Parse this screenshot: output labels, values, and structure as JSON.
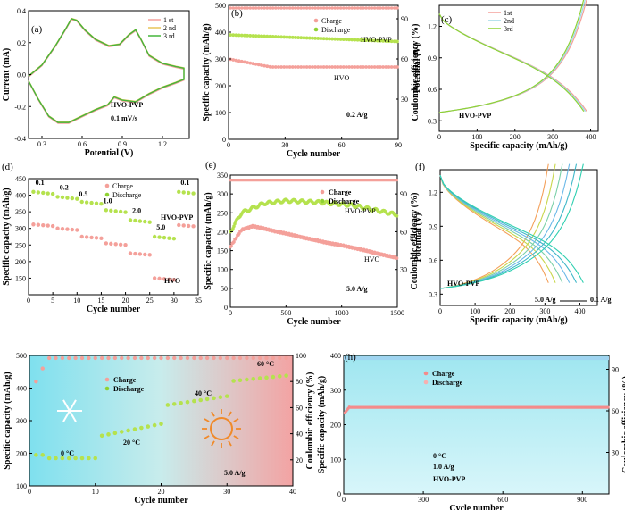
{
  "chart_data": [
    {
      "panel": "a",
      "type": "line",
      "title": "",
      "xlabel": "Potential (V)",
      "ylabel": "Current (mA)",
      "xlim": [
        0.2,
        1.4
      ],
      "ylim": [
        -0.4,
        0.4
      ],
      "xticks": [
        "0.3",
        "0.6",
        "0.9",
        "1.2"
      ],
      "yticks": [
        "-0.4",
        "-0.2",
        "0.0",
        "0.2",
        "0.4"
      ],
      "legend": [
        "1 st",
        "2 nd",
        "3 rd"
      ],
      "colors": [
        "#f4a09a",
        "#e8c458",
        "#44b63a"
      ],
      "annotations": [
        "HVO-PVP",
        "0.1 mV/s"
      ],
      "anodic": [
        [
          0.2,
          -0.01
        ],
        [
          0.3,
          0.06
        ],
        [
          0.4,
          0.18
        ],
        [
          0.48,
          0.29
        ],
        [
          0.52,
          0.35
        ],
        [
          0.56,
          0.34
        ],
        [
          0.62,
          0.28
        ],
        [
          0.7,
          0.22
        ],
        [
          0.8,
          0.18
        ],
        [
          0.88,
          0.19
        ],
        [
          0.95,
          0.25
        ],
        [
          1.0,
          0.28
        ],
        [
          1.04,
          0.22
        ],
        [
          1.1,
          0.12
        ],
        [
          1.2,
          0.07
        ],
        [
          1.3,
          0.05
        ],
        [
          1.36,
          0.04
        ],
        [
          1.36,
          -0.03
        ]
      ],
      "cathodic": [
        [
          1.36,
          -0.03
        ],
        [
          1.3,
          -0.05
        ],
        [
          1.2,
          -0.08
        ],
        [
          1.1,
          -0.12
        ],
        [
          1.0,
          -0.17
        ],
        [
          0.9,
          -0.16
        ],
        [
          0.84,
          -0.14
        ],
        [
          0.79,
          -0.19
        ],
        [
          0.7,
          -0.22
        ],
        [
          0.6,
          -0.26
        ],
        [
          0.5,
          -0.3
        ],
        [
          0.42,
          -0.3
        ],
        [
          0.35,
          -0.26
        ],
        [
          0.27,
          -0.15
        ],
        [
          0.2,
          -0.04
        ]
      ]
    },
    {
      "panel": "b",
      "type": "scatter",
      "xlabel": "Cycle number",
      "ylabel": "Specific capacity (mAh/g)",
      "y2label": "Coulombic efficiency (%)",
      "xlim": [
        0,
        90
      ],
      "ylim": [
        0,
        500
      ],
      "y2lim": [
        0,
        100
      ],
      "xticks": [
        "0",
        "30",
        "60",
        "90"
      ],
      "yticks": [
        "0",
        "100",
        "200",
        "300",
        "400",
        "500"
      ],
      "y2ticks": [
        "30",
        "60",
        "90"
      ],
      "legend": [
        "Charge",
        "Discharge"
      ],
      "annotations": [
        "HVO-PVP",
        "HVO",
        "0.2 A/g"
      ],
      "series": [
        {
          "name": "HVO-PVP discharge",
          "start": 390,
          "end": 365
        },
        {
          "name": "HVO",
          "start": 300,
          "end": 270
        },
        {
          "name": "Coulombic efficiency",
          "value": 98
        }
      ]
    },
    {
      "panel": "c",
      "type": "line",
      "xlabel": "Specific capacity (mAh/g)",
      "ylabel": "Potential (V)",
      "xlim": [
        0,
        420
      ],
      "ylim": [
        0.2,
        1.4
      ],
      "xticks": [
        "0",
        "100",
        "200",
        "300",
        "400"
      ],
      "yticks": [
        "0.3",
        "0.6",
        "0.9",
        "1.2"
      ],
      "legend": [
        "1st",
        "2nd",
        "3rd"
      ],
      "annotations": [
        "HVO-PVP"
      ],
      "capacity_max": 390
    },
    {
      "panel": "d",
      "type": "scatter",
      "xlabel": "Cycle number",
      "ylabel": "Specific capacity (mAh/g)",
      "xlim": [
        0,
        35
      ],
      "ylim": [
        100,
        450
      ],
      "xticks": [
        "0",
        "5",
        "10",
        "15",
        "20",
        "25",
        "30",
        "35"
      ],
      "yticks": [
        "150",
        "200",
        "250",
        "300",
        "350",
        "400",
        "450"
      ],
      "legend": [
        "Charge",
        "Discharge"
      ],
      "rates": [
        "0.1",
        "0.2",
        "0.5",
        "1.0",
        "2.0",
        "5.0",
        "0.1"
      ],
      "annotations": [
        "HVO-PVP",
        "HVO"
      ],
      "hvo_pvp": [
        410,
        395,
        380,
        355,
        325,
        275,
        410
      ],
      "hvo": [
        312,
        300,
        275,
        255,
        225,
        150,
        310
      ]
    },
    {
      "panel": "e",
      "type": "scatter",
      "xlabel": "Cycle number",
      "ylabel": "Specific capacity (mAh/g)",
      "y2label": "Coulombic efficiency (%)",
      "xlim": [
        0,
        1500
      ],
      "ylim": [
        0,
        350
      ],
      "y2lim": [
        0,
        105
      ],
      "xticks": [
        "0",
        "500",
        "1000",
        "1500"
      ],
      "yticks": [
        "0",
        "50",
        "100",
        "150",
        "200",
        "250",
        "300",
        "350"
      ],
      "y2ticks": [
        "30",
        "60",
        "90"
      ],
      "legend": [
        "Charge",
        "Discharge"
      ],
      "annotations": [
        "HVO-PVP",
        "HVO",
        "5.0 A/g"
      ],
      "hvo_pvp": [
        [
          0,
          200
        ],
        [
          100,
          250
        ],
        [
          300,
          275
        ],
        [
          500,
          282
        ],
        [
          800,
          278
        ],
        [
          1100,
          270
        ],
        [
          1500,
          245
        ]
      ],
      "hvo": [
        [
          0,
          160
        ],
        [
          100,
          205
        ],
        [
          200,
          215
        ],
        [
          500,
          195
        ],
        [
          800,
          175
        ],
        [
          1100,
          158
        ],
        [
          1500,
          130
        ]
      ]
    },
    {
      "panel": "f",
      "type": "line",
      "xlabel": "Specific capacity (mAh/g)",
      "ylabel": "Potential (V)",
      "xlim": [
        0,
        450
      ],
      "ylim": [
        0.2,
        1.4
      ],
      "xticks": [
        "0",
        "100",
        "200",
        "300",
        "400"
      ],
      "yticks": [
        "0.3",
        "0.6",
        "0.9",
        "1.2"
      ],
      "annotations": [
        "HVO-PVP",
        "5.0 A/g",
        "0.1 A/g"
      ],
      "capacities": [
        310,
        330,
        350,
        370,
        390,
        410
      ]
    },
    {
      "panel": "g",
      "type": "scatter",
      "xlabel": "Cycle number",
      "ylabel": "Specific capacity (mAh/g)",
      "y2label": "Coulombic efficiency (%)",
      "xlim": [
        0,
        40
      ],
      "ylim": [
        100,
        500
      ],
      "y2lim": [
        0,
        100
      ],
      "xticks": [
        "0",
        "10",
        "20",
        "30",
        "40"
      ],
      "yticks": [
        "100",
        "200",
        "300",
        "400",
        "500"
      ],
      "y2ticks": [
        "20",
        "40",
        "60",
        "80",
        "100"
      ],
      "legend": [
        "Charge",
        "Discharge"
      ],
      "annotations": [
        "0 °C",
        "20 °C",
        "40 °C",
        "60 °C",
        "5.0 A/g"
      ],
      "steps": [
        {
          "temp": "0 °C",
          "value": 185
        },
        {
          "temp": "20 °C",
          "value": 290
        },
        {
          "temp": "40 °C",
          "value": 375
        },
        {
          "temp": "60 °C",
          "value": 440
        }
      ]
    },
    {
      "panel": "h",
      "type": "scatter",
      "xlabel": "Cycle number",
      "ylabel": "Specific capacity (mAh/g)",
      "y2label": "Coulombic efficiency (%)",
      "xlim": [
        0,
        1000
      ],
      "ylim": [
        0,
        400
      ],
      "y2lim": [
        0,
        100
      ],
      "xticks": [
        "0",
        "300",
        "600",
        "900"
      ],
      "yticks": [
        "0",
        "100",
        "200",
        "300",
        "400"
      ],
      "y2ticks": [
        "30",
        "60",
        "90"
      ],
      "legend": [
        "Charge",
        "Discharge"
      ],
      "annotations": [
        "0 °C",
        "1.0 A/g",
        "HVO-PVP"
      ],
      "capacity": 250,
      "efficiency": 98
    }
  ],
  "labels": {
    "a": "(a)",
    "b": "(b)",
    "c": "(c)",
    "d": "(d)",
    "e": "(e)",
    "f": "(f)",
    "h": "(h)"
  }
}
